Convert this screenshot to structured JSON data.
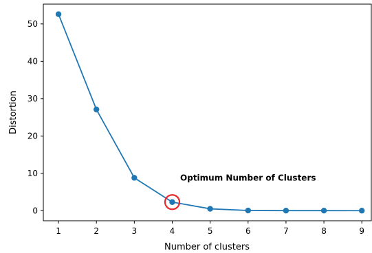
{
  "chart_data": {
    "type": "line",
    "title": "",
    "xlabel": "Number of clusters",
    "ylabel": "Distortion",
    "x": [
      1,
      2,
      3,
      4,
      5,
      6,
      7,
      8,
      9
    ],
    "series": [
      {
        "values": [
          52.6,
          27.1,
          8.8,
          2.3,
          0.5,
          0.05,
          0.02,
          0.02,
          0.01
        ],
        "color": "#1f77b4",
        "marker": "circle"
      }
    ],
    "xticks": [
      1,
      2,
      3,
      4,
      5,
      6,
      7,
      8,
      9
    ],
    "yticks": [
      0,
      10,
      20,
      30,
      40,
      50
    ],
    "xlim": [
      0.6,
      9.25
    ],
    "ylim": [
      -2.7,
      55.3
    ],
    "grid": false,
    "annotations": [
      {
        "text": "Optimum Number of Clusters",
        "x": 6.0,
        "y": 8.8,
        "highlight_x": 4,
        "highlight_y": 2.3,
        "highlight_color": "#e8282b"
      }
    ]
  }
}
